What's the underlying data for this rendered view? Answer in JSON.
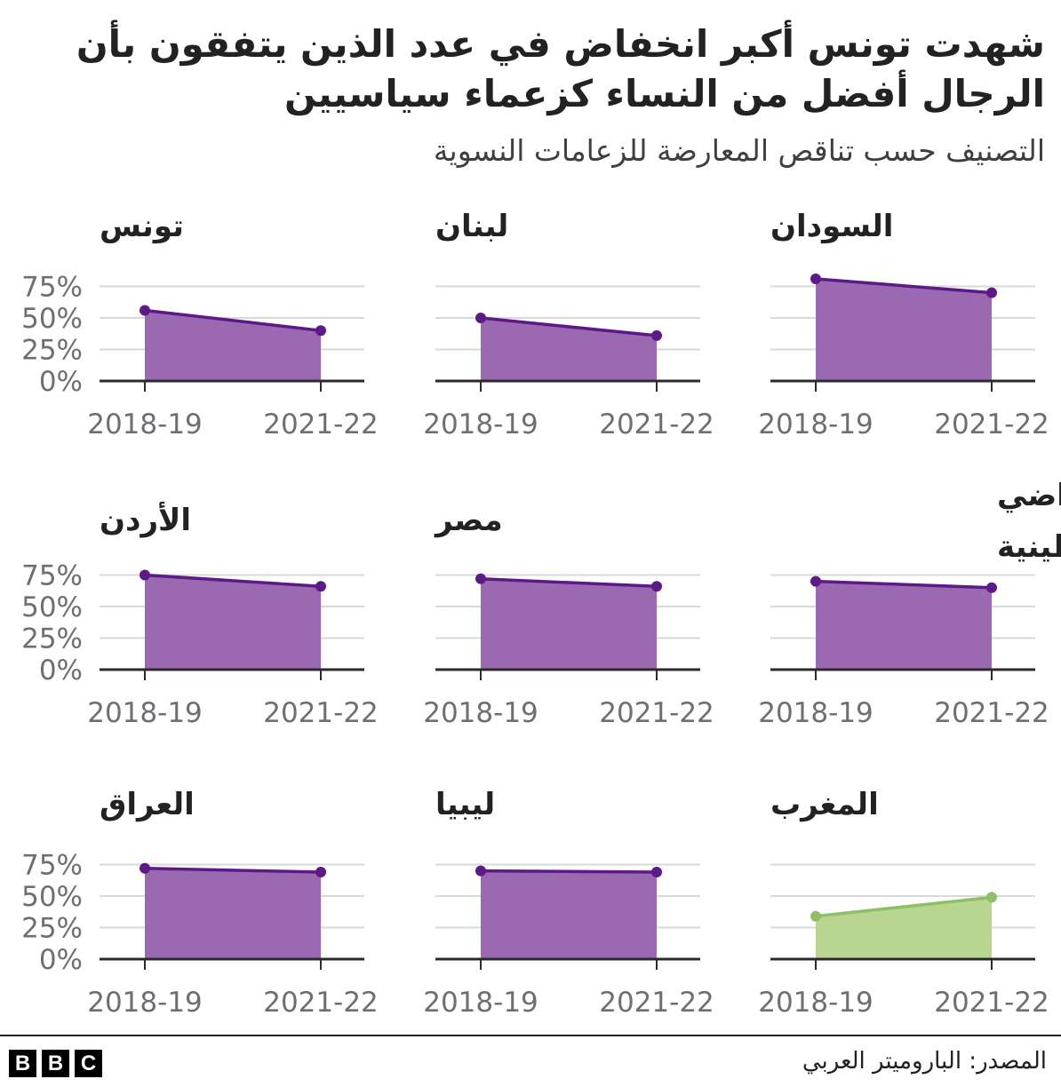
{
  "header": {
    "title": "شهدت تونس أكبر انخفاض في عدد الذين يتفقون بأن الرجال أفضل من النساء كزعماء سياسيين",
    "subtitle": "التصنيف حسب تناقص المعارضة للزعامات النسوية"
  },
  "colors": {
    "decrease_fill": "#9b69b1",
    "decrease_line": "#5b1a86",
    "increase_fill": "#b8d68f",
    "increase_line": "#8fc067",
    "grid": "#d9d9d9",
    "axis": "#2b2b2b",
    "tick_text": "#6e6e73"
  },
  "chart_data": [
    {
      "type": "area",
      "title": "السودان",
      "x": [
        "2018-19",
        "2021-22"
      ],
      "values": [
        81,
        70
      ],
      "yticks": [
        "0%",
        "25%",
        "50%",
        "75%"
      ],
      "ylim": [
        0,
        100
      ]
    },
    {
      "type": "area",
      "title": "لبنان",
      "x": [
        "2018-19",
        "2021-22"
      ],
      "values": [
        50,
        36
      ],
      "yticks": [
        "0%",
        "25%",
        "50%",
        "75%"
      ],
      "ylim": [
        0,
        100
      ]
    },
    {
      "type": "area",
      "title": "تونس",
      "x": [
        "2018-19",
        "2021-22"
      ],
      "values": [
        56,
        40
      ],
      "yticks": [
        "0%",
        "25%",
        "50%",
        "75%"
      ],
      "ylim": [
        0,
        100
      ]
    },
    {
      "type": "area",
      "title": "الأراضي الفلسطينية",
      "x": [
        "2018-19",
        "2021-22"
      ],
      "values": [
        70,
        65
      ],
      "yticks": [
        "0%",
        "25%",
        "50%",
        "75%"
      ],
      "ylim": [
        0,
        100
      ]
    },
    {
      "type": "area",
      "title": "مصر",
      "x": [
        "2018-19",
        "2021-22"
      ],
      "values": [
        72,
        66
      ],
      "yticks": [
        "0%",
        "25%",
        "50%",
        "75%"
      ],
      "ylim": [
        0,
        100
      ]
    },
    {
      "type": "area",
      "title": "الأردن",
      "x": [
        "2018-19",
        "2021-22"
      ],
      "values": [
        75,
        66
      ],
      "yticks": [
        "0%",
        "25%",
        "50%",
        "75%"
      ],
      "ylim": [
        0,
        100
      ]
    },
    {
      "type": "area",
      "title": "المغرب",
      "x": [
        "2018-19",
        "2021-22"
      ],
      "values": [
        34,
        49
      ],
      "yticks": [
        "0%",
        "25%",
        "50%",
        "75%"
      ],
      "ylim": [
        0,
        100
      ]
    },
    {
      "type": "area",
      "title": "ليبيا",
      "x": [
        "2018-19",
        "2021-22"
      ],
      "values": [
        70,
        69
      ],
      "yticks": [
        "0%",
        "25%",
        "50%",
        "75%"
      ],
      "ylim": [
        0,
        100
      ]
    },
    {
      "type": "area",
      "title": "العراق",
      "x": [
        "2018-19",
        "2021-22"
      ],
      "values": [
        72,
        69
      ],
      "yticks": [
        "0%",
        "25%",
        "50%",
        "75%"
      ],
      "ylim": [
        0,
        100
      ]
    }
  ],
  "footer": {
    "logo": [
      "B",
      "B",
      "C"
    ],
    "source": "المصدر: الباروميتر العربي"
  }
}
